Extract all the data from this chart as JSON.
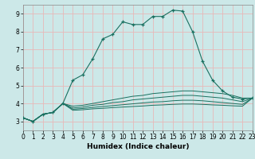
{
  "xlabel": "Humidex (Indice chaleur)",
  "bg_color": "#cce8e8",
  "grid_color": "#e8b8b8",
  "line_color": "#1a7060",
  "xlim": [
    0,
    23
  ],
  "ylim": [
    2.5,
    9.5
  ],
  "yticks": [
    3,
    4,
    5,
    6,
    7,
    8,
    9
  ],
  "xticks": [
    0,
    1,
    2,
    3,
    4,
    5,
    6,
    7,
    8,
    9,
    10,
    11,
    12,
    13,
    14,
    15,
    16,
    17,
    18,
    19,
    20,
    21,
    22,
    23
  ],
  "series_main": [
    [
      0,
      3.2
    ],
    [
      1,
      3.0
    ],
    [
      2,
      3.4
    ],
    [
      3,
      3.5
    ],
    [
      4,
      4.0
    ],
    [
      5,
      5.3
    ],
    [
      6,
      5.6
    ],
    [
      7,
      6.5
    ],
    [
      8,
      7.6
    ],
    [
      9,
      7.85
    ],
    [
      10,
      8.55
    ],
    [
      11,
      8.4
    ],
    [
      12,
      8.4
    ],
    [
      13,
      8.85
    ],
    [
      14,
      8.85
    ],
    [
      15,
      9.2
    ],
    [
      16,
      9.15
    ],
    [
      17,
      8.0
    ],
    [
      18,
      6.35
    ],
    [
      19,
      5.3
    ],
    [
      20,
      4.7
    ],
    [
      21,
      4.35
    ],
    [
      22,
      4.25
    ],
    [
      23,
      4.3
    ]
  ],
  "series_lower1": [
    [
      0,
      3.2
    ],
    [
      1,
      3.0
    ],
    [
      2,
      3.4
    ],
    [
      3,
      3.5
    ],
    [
      4,
      4.0
    ],
    [
      5,
      3.85
    ],
    [
      6,
      3.9
    ],
    [
      7,
      4.0
    ],
    [
      8,
      4.1
    ],
    [
      9,
      4.2
    ],
    [
      10,
      4.3
    ],
    [
      11,
      4.4
    ],
    [
      12,
      4.45
    ],
    [
      13,
      4.55
    ],
    [
      14,
      4.6
    ],
    [
      15,
      4.65
    ],
    [
      16,
      4.7
    ],
    [
      17,
      4.7
    ],
    [
      18,
      4.65
    ],
    [
      19,
      4.6
    ],
    [
      20,
      4.55
    ],
    [
      21,
      4.45
    ],
    [
      22,
      4.3
    ],
    [
      23,
      4.3
    ]
  ],
  "series_lower2": [
    [
      0,
      3.2
    ],
    [
      1,
      3.0
    ],
    [
      2,
      3.4
    ],
    [
      3,
      3.5
    ],
    [
      4,
      4.0
    ],
    [
      5,
      3.75
    ],
    [
      6,
      3.8
    ],
    [
      7,
      3.9
    ],
    [
      8,
      3.95
    ],
    [
      9,
      4.05
    ],
    [
      10,
      4.1
    ],
    [
      11,
      4.2
    ],
    [
      12,
      4.25
    ],
    [
      13,
      4.3
    ],
    [
      14,
      4.35
    ],
    [
      15,
      4.4
    ],
    [
      16,
      4.45
    ],
    [
      17,
      4.45
    ],
    [
      18,
      4.4
    ],
    [
      19,
      4.35
    ],
    [
      20,
      4.3
    ],
    [
      21,
      4.2
    ],
    [
      22,
      4.1
    ],
    [
      23,
      4.3
    ]
  ],
  "series_lower3": [
    [
      0,
      3.2
    ],
    [
      1,
      3.0
    ],
    [
      2,
      3.4
    ],
    [
      3,
      3.5
    ],
    [
      4,
      4.0
    ],
    [
      5,
      3.68
    ],
    [
      6,
      3.72
    ],
    [
      7,
      3.78
    ],
    [
      8,
      3.83
    ],
    [
      9,
      3.88
    ],
    [
      10,
      3.93
    ],
    [
      11,
      3.98
    ],
    [
      12,
      4.03
    ],
    [
      13,
      4.08
    ],
    [
      14,
      4.1
    ],
    [
      15,
      4.15
    ],
    [
      16,
      4.18
    ],
    [
      17,
      4.18
    ],
    [
      18,
      4.15
    ],
    [
      19,
      4.1
    ],
    [
      20,
      4.05
    ],
    [
      21,
      4.0
    ],
    [
      22,
      3.95
    ],
    [
      23,
      4.3
    ]
  ],
  "series_lower4": [
    [
      0,
      3.2
    ],
    [
      1,
      3.0
    ],
    [
      2,
      3.4
    ],
    [
      3,
      3.5
    ],
    [
      4,
      4.0
    ],
    [
      5,
      3.62
    ],
    [
      6,
      3.65
    ],
    [
      7,
      3.7
    ],
    [
      8,
      3.73
    ],
    [
      9,
      3.77
    ],
    [
      10,
      3.8
    ],
    [
      11,
      3.83
    ],
    [
      12,
      3.86
    ],
    [
      13,
      3.9
    ],
    [
      14,
      3.92
    ],
    [
      15,
      3.95
    ],
    [
      16,
      3.97
    ],
    [
      17,
      3.97
    ],
    [
      18,
      3.95
    ],
    [
      19,
      3.92
    ],
    [
      20,
      3.9
    ],
    [
      21,
      3.87
    ],
    [
      22,
      3.85
    ],
    [
      23,
      4.3
    ]
  ]
}
